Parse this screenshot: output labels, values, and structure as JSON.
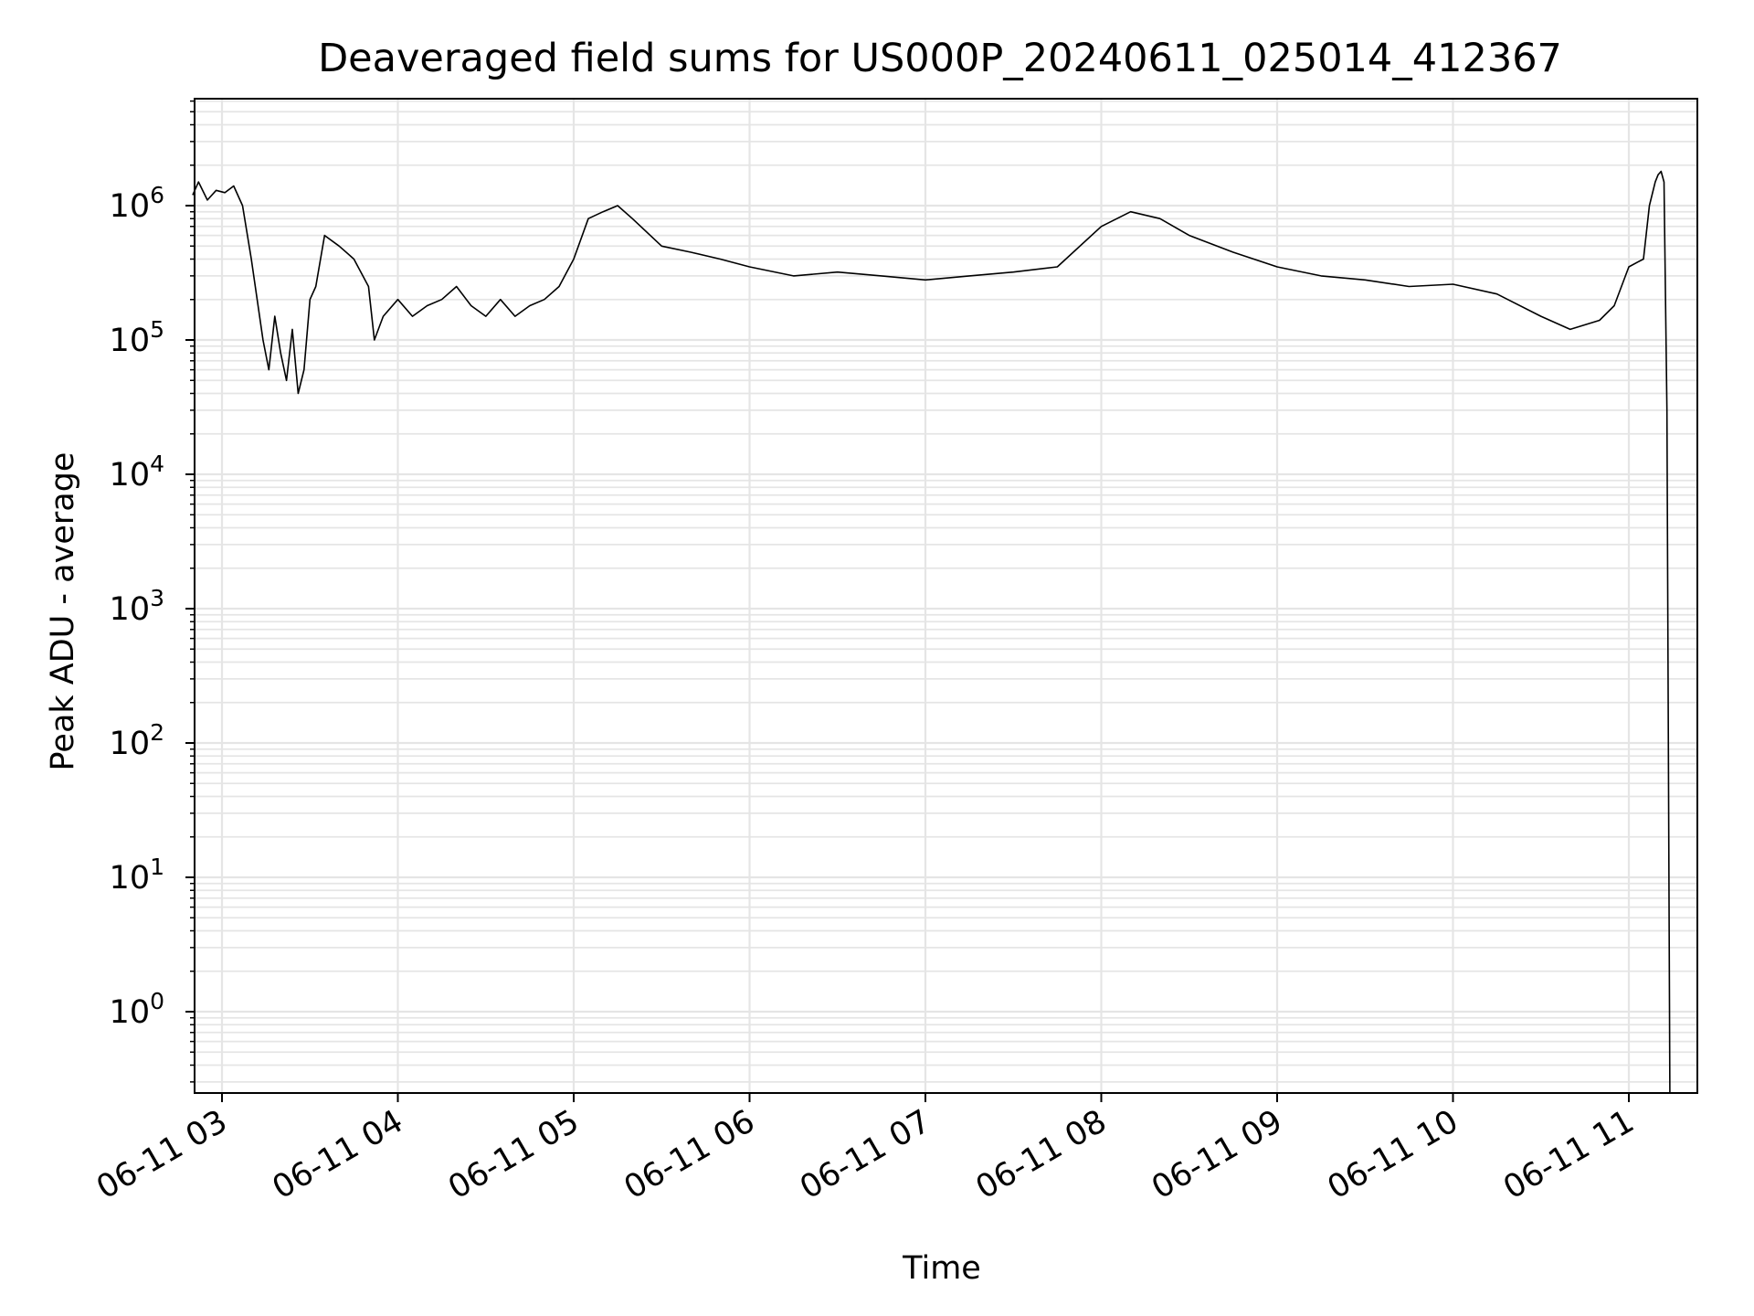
{
  "chart_data": {
    "type": "line",
    "title": "Deaveraged field sums for US000P_20240611_025014_412367",
    "xlabel": "Time",
    "ylabel": "Peak ADU - average",
    "yscale": "log",
    "ylim": [
      0.25,
      6500000
    ],
    "xlim": [
      "2024-06-11T02:50:00",
      "2024-06-11T11:23:00"
    ],
    "grid": true,
    "line_color": "#000000",
    "grid_color": "#e5e5e5",
    "x_ticks": [
      "06-11 03",
      "06-11 04",
      "06-11 05",
      "06-11 06",
      "06-11 07",
      "06-11 08",
      "06-11 09",
      "06-11 10",
      "06-11 11"
    ],
    "y_ticks": [
      {
        "base": "10",
        "exp": "0"
      },
      {
        "base": "10",
        "exp": "1"
      },
      {
        "base": "10",
        "exp": "2"
      },
      {
        "base": "10",
        "exp": "3"
      },
      {
        "base": "10",
        "exp": "4"
      },
      {
        "base": "10",
        "exp": "5"
      },
      {
        "base": "10",
        "exp": "6"
      }
    ],
    "series": [
      {
        "x": [
          "02:50",
          "02:52",
          "02:55",
          "02:58",
          "03:01",
          "03:04",
          "03:07",
          "03:10",
          "03:12",
          "03:14",
          "03:16",
          "03:18",
          "03:20",
          "03:22",
          "03:24",
          "03:26",
          "03:28",
          "03:30",
          "03:32",
          "03:35",
          "03:40",
          "03:45",
          "03:50",
          "03:52",
          "03:55",
          "04:00",
          "04:05",
          "04:10",
          "04:15",
          "04:20",
          "04:25",
          "04:30",
          "04:35",
          "04:40",
          "04:45",
          "04:50",
          "04:55",
          "05:00",
          "05:05",
          "05:10",
          "05:15",
          "05:20",
          "05:30",
          "05:40",
          "05:50",
          "06:00",
          "06:15",
          "06:30",
          "06:45",
          "07:00",
          "07:15",
          "07:30",
          "07:45",
          "08:00",
          "08:10",
          "08:20",
          "08:30",
          "08:45",
          "09:00",
          "09:15",
          "09:30",
          "09:45",
          "10:00",
          "10:15",
          "10:30",
          "10:40",
          "10:50",
          "10:55",
          "11:00",
          "11:03",
          "11:05",
          "11:07",
          "11:09",
          "11:10",
          "11:11",
          "11:12",
          "11:13",
          "11:14"
        ],
        "y": [
          1200000,
          1500000,
          1100000,
          1300000,
          1250000,
          1400000,
          1000000,
          400000,
          200000,
          100000,
          60000,
          150000,
          80000,
          50000,
          120000,
          40000,
          60000,
          200000,
          250000,
          600000,
          500000,
          400000,
          250000,
          100000,
          150000,
          200000,
          150000,
          180000,
          200000,
          250000,
          180000,
          150000,
          200000,
          150000,
          180000,
          200000,
          250000,
          400000,
          800000,
          900000,
          1000000,
          800000,
          500000,
          450000,
          400000,
          350000,
          300000,
          320000,
          300000,
          280000,
          300000,
          320000,
          350000,
          700000,
          900000,
          800000,
          600000,
          450000,
          350000,
          300000,
          280000,
          250000,
          260000,
          220000,
          150000,
          120000,
          140000,
          180000,
          350000,
          380000,
          400000,
          1000000,
          1500000,
          1700000,
          1800000,
          1500000,
          30000,
          0.25
        ]
      }
    ]
  }
}
